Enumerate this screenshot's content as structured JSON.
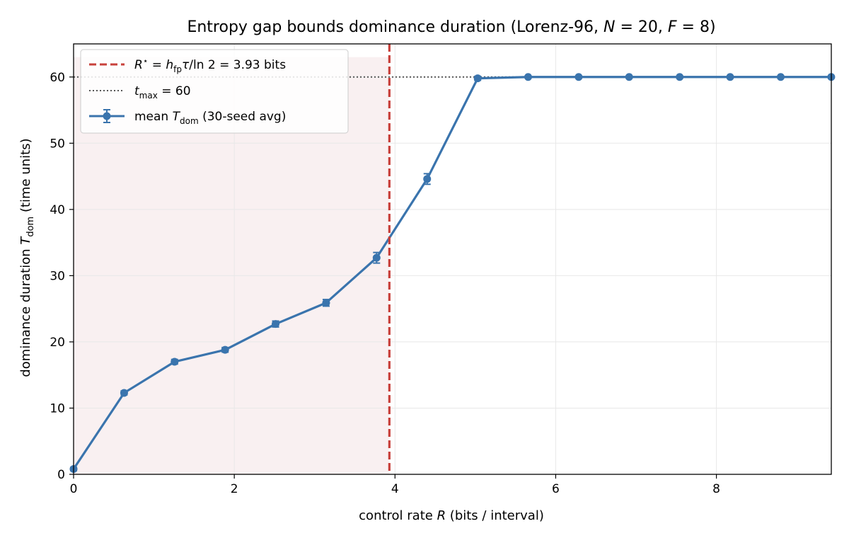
{
  "chart_data": {
    "type": "line",
    "title": "Entropy gap bounds dominance duration (Lorenz-96, N = 20, F = 8)",
    "xlabel": "control rate R (bits / interval)",
    "ylabel": "dominance duration T_dom (time units)",
    "xlim": [
      0,
      9.43
    ],
    "ylim": [
      0,
      65
    ],
    "xticks": [
      "0",
      "2",
      "4",
      "6",
      "8"
    ],
    "yticks": [
      "0",
      "10",
      "20",
      "30",
      "40",
      "50",
      "60"
    ],
    "grid": true,
    "legend_position": "top-left",
    "legend": [
      "R* = h_fp τ/ln 2 = 3.93 bits",
      "t_max = 60",
      "mean T_dom (30-seed avg)"
    ],
    "r_star": 3.93,
    "t_max": 60,
    "series": [
      {
        "name": "mean T_dom (30-seed avg)",
        "color": "#3a74ad",
        "x": [
          0.0,
          0.629,
          1.257,
          1.886,
          2.514,
          3.143,
          3.771,
          4.4,
          5.029,
          5.657,
          6.286,
          6.914,
          7.543,
          8.171,
          8.8,
          9.429
        ],
        "y": [
          0.8,
          12.3,
          17.0,
          18.8,
          22.7,
          25.9,
          32.7,
          44.6,
          59.8,
          60.0,
          60.0,
          60.0,
          60.0,
          60.0,
          60.0,
          60.0
        ],
        "err": [
          0.25,
          0.3,
          0.35,
          0.35,
          0.45,
          0.5,
          0.8,
          0.8,
          0.3,
          0.05,
          0.0,
          0.0,
          0.0,
          0.0,
          0.0,
          0.0
        ]
      }
    ],
    "colors": {
      "threshold": "#c8413c",
      "shade": "#f9f0f1",
      "tmax": "#555555",
      "grid": "#e8e8e8"
    }
  }
}
